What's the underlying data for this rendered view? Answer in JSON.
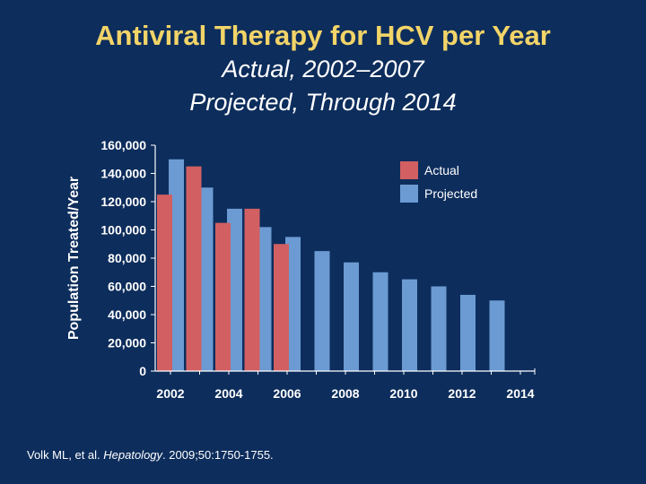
{
  "slide": {
    "title": "Antiviral Therapy for HCV per Year",
    "subtitle_1": "Actual, 2002–2007",
    "subtitle_2": "Projected, Through 2014",
    "citation_authors": "Volk ML, et al. ",
    "citation_journal": "Hepatology",
    "citation_rest": ". 2009;50:1750-1755."
  },
  "colors": {
    "background": "#0d2d5c",
    "title": "#f2d468",
    "actual": "#d25f62",
    "projected": "#6b9bd2"
  },
  "chart_data": {
    "type": "bar",
    "ylabel": "Population Treated/Year",
    "ylim": [
      0,
      160000
    ],
    "yticks": [
      "0",
      "20,000",
      "40,000",
      "60,000",
      "80,000",
      "100,000",
      "120,000",
      "140,000",
      "160,000"
    ],
    "xlim": [
      2002,
      2014
    ],
    "xticks": [
      "2002",
      "2004",
      "2006",
      "2008",
      "2010",
      "2012",
      "2014"
    ],
    "legend_position": "top-right",
    "series": [
      {
        "name": "Actual",
        "x": [
          2002,
          2003,
          2004,
          2005,
          2006
        ],
        "values": [
          125000,
          145000,
          105000,
          115000,
          90000
        ]
      },
      {
        "name": "Projected",
        "x": [
          2002,
          2003,
          2004,
          2005,
          2006,
          2007,
          2008,
          2009,
          2010,
          2011,
          2012,
          2013
        ],
        "values": [
          150000,
          130000,
          115000,
          102000,
          95000,
          85000,
          77000,
          70000,
          65000,
          60000,
          54000,
          50000
        ]
      }
    ]
  }
}
